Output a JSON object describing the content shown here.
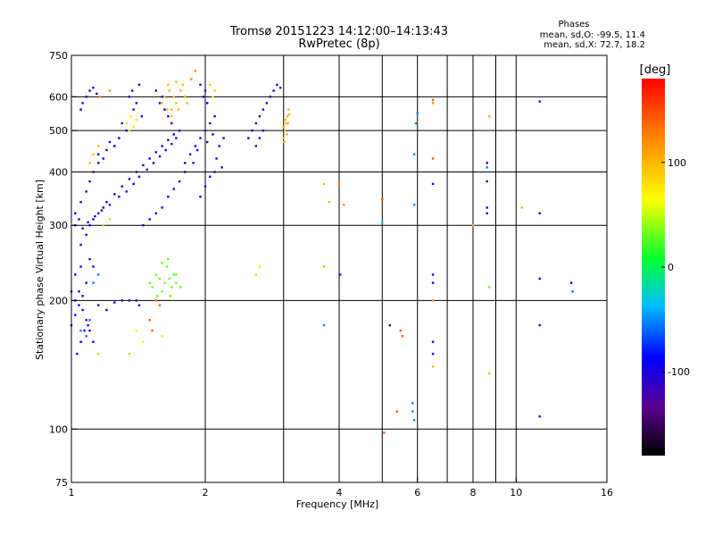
{
  "header": {
    "title": "Tromsø 20151223 14:12:00–14:13:43",
    "subtitle": "RwPretec (8p)"
  },
  "phase_box": {
    "heading": "Phases",
    "line_o": "mean, sd,O: -99.5, 11.4",
    "line_x": "mean, sd,X:  72.7, 18.2"
  },
  "colorbar": {
    "unit_label": "[deg]",
    "ticks": [
      "100",
      "0",
      "-100"
    ],
    "tick_values": [
      100,
      0,
      -100
    ],
    "range": [
      -180,
      180
    ]
  },
  "chart_data": {
    "type": "scatter",
    "xlabel": "Frequency [MHz]",
    "ylabel": "Stationary phase Virtual Height [km]",
    "xscale": "log",
    "yscale": "log",
    "xlim": [
      1,
      16
    ],
    "ylim": [
      75,
      750
    ],
    "x_ticks": [
      1,
      2,
      4,
      6,
      8,
      10,
      16
    ],
    "x_tick_labels": [
      "1",
      "2",
      "4",
      "6",
      "8",
      "10",
      "16"
    ],
    "x_gridlines": [
      1,
      2,
      3,
      4,
      5,
      6,
      7,
      8,
      9,
      10
    ],
    "y_ticks": [
      75,
      100,
      200,
      300,
      400,
      500,
      600,
      750
    ],
    "y_tick_labels": [
      "75",
      "100",
      "200",
      "300",
      "400",
      "500",
      "600",
      "750"
    ],
    "y_gridlines": [
      100,
      200,
      300,
      400,
      500,
      600
    ],
    "grid": true,
    "points": [
      [
        1.05,
        270,
        -95
      ],
      [
        1.08,
        285,
        -100
      ],
      [
        1.1,
        300,
        -98
      ],
      [
        1.12,
        310,
        -102
      ],
      [
        1.15,
        320,
        -96
      ],
      [
        1.18,
        330,
        -100
      ],
      [
        1.2,
        340,
        -95
      ],
      [
        1.25,
        355,
        -100
      ],
      [
        1.3,
        370,
        -98
      ],
      [
        1.35,
        385,
        -100
      ],
      [
        1.4,
        400,
        -104
      ],
      [
        1.45,
        415,
        -97
      ],
      [
        1.5,
        430,
        -100
      ],
      [
        1.55,
        445,
        -99
      ],
      [
        1.6,
        460,
        -101
      ],
      [
        1.65,
        475,
        -96
      ],
      [
        1.7,
        490,
        -100
      ],
      [
        1.02,
        320,
        -100
      ],
      [
        1.05,
        340,
        -97
      ],
      [
        1.08,
        360,
        -100
      ],
      [
        1.1,
        380,
        -102
      ],
      [
        1.12,
        400,
        -98
      ],
      [
        1.15,
        420,
        -100
      ],
      [
        1.02,
        300,
        -100
      ],
      [
        1.04,
        310,
        -100
      ],
      [
        1.06,
        295,
        -95
      ],
      [
        1.09,
        305,
        -100
      ],
      [
        1.13,
        315,
        -100
      ],
      [
        1.17,
        325,
        -105
      ],
      [
        1.22,
        335,
        -100
      ],
      [
        1.28,
        350,
        -100
      ],
      [
        1.33,
        360,
        -95
      ],
      [
        1.38,
        375,
        -100
      ],
      [
        1.42,
        390,
        -100
      ],
      [
        1.48,
        405,
        -105
      ],
      [
        1.53,
        420,
        -100
      ],
      [
        1.58,
        435,
        -100
      ],
      [
        1.63,
        450,
        -95
      ],
      [
        1.68,
        465,
        -100
      ],
      [
        1.72,
        480,
        -100
      ],
      [
        1.75,
        500,
        -105
      ],
      [
        1.8,
        420,
        -100
      ],
      [
        1.85,
        440,
        -100
      ],
      [
        1.9,
        460,
        -95
      ],
      [
        1.95,
        480,
        -100
      ],
      [
        2.0,
        500,
        -100
      ],
      [
        2.05,
        520,
        -105
      ],
      [
        2.1,
        540,
        -100
      ],
      [
        1.75,
        380,
        -100
      ],
      [
        1.8,
        400,
        -95
      ],
      [
        1.88,
        420,
        -100
      ],
      [
        1.92,
        450,
        -100
      ],
      [
        2.02,
        470,
        -105
      ],
      [
        2.08,
        490,
        -100
      ],
      [
        2.15,
        460,
        -100
      ],
      [
        2.2,
        480,
        -95
      ],
      [
        2.1,
        400,
        -100
      ],
      [
        2.12,
        430,
        -100
      ],
      [
        2.18,
        410,
        -105
      ],
      [
        1.95,
        350,
        -100
      ],
      [
        2.0,
        370,
        -100
      ],
      [
        2.05,
        390,
        -95
      ],
      [
        1.6,
        330,
        -100
      ],
      [
        1.65,
        350,
        -100
      ],
      [
        1.7,
        365,
        -105
      ],
      [
        1.55,
        320,
        -100
      ],
      [
        1.5,
        310,
        -100
      ],
      [
        1.45,
        300,
        -95
      ],
      [
        1.35,
        600,
        -100
      ],
      [
        1.4,
        580,
        -100
      ],
      [
        1.37,
        620,
        -105
      ],
      [
        1.42,
        640,
        -100
      ],
      [
        1.38,
        560,
        -100
      ],
      [
        1.44,
        540,
        -95
      ],
      [
        1.3,
        520,
        -100
      ],
      [
        1.33,
        500,
        -100
      ],
      [
        1.28,
        480,
        -105
      ],
      [
        1.25,
        460,
        -100
      ],
      [
        1.22,
        470,
        -100
      ],
      [
        1.2,
        450,
        -95
      ],
      [
        1.18,
        430,
        -100
      ],
      [
        1.15,
        440,
        -100
      ],
      [
        1.1,
        620,
        -105
      ],
      [
        1.08,
        600,
        -100
      ],
      [
        1.12,
        630,
        -100
      ],
      [
        1.14,
        610,
        -95
      ],
      [
        1.06,
        580,
        -100
      ],
      [
        1.05,
        560,
        -100
      ],
      [
        1.55,
        620,
        -105
      ],
      [
        1.6,
        600,
        -100
      ],
      [
        1.58,
        580,
        -100
      ],
      [
        1.62,
        560,
        -95
      ],
      [
        1.65,
        540,
        -100
      ],
      [
        1.68,
        520,
        -100
      ],
      [
        1.95,
        640,
        -105
      ],
      [
        2.0,
        620,
        -100
      ],
      [
        1.98,
        600,
        -100
      ],
      [
        2.02,
        580,
        -95
      ],
      [
        2.5,
        480,
        -100
      ],
      [
        2.55,
        500,
        -100
      ],
      [
        2.6,
        520,
        -105
      ],
      [
        2.65,
        540,
        -100
      ],
      [
        2.7,
        560,
        -100
      ],
      [
        2.75,
        580,
        -95
      ],
      [
        2.8,
        600,
        -100
      ],
      [
        2.85,
        620,
        -100
      ],
      [
        2.9,
        640,
        -105
      ],
      [
        2.6,
        460,
        -100
      ],
      [
        2.65,
        480,
        -100
      ],
      [
        2.7,
        500,
        -95
      ],
      [
        2.95,
        630,
        -100
      ],
      [
        1.02,
        200,
        -100
      ],
      [
        1.04,
        210,
        -95
      ],
      [
        1.06,
        190,
        -100
      ],
      [
        1.08,
        180,
        -105
      ],
      [
        1.1,
        170,
        -100
      ],
      [
        1.12,
        160,
        -95
      ],
      [
        1.03,
        150,
        -100
      ],
      [
        1.05,
        160,
        -105
      ],
      [
        1.07,
        170,
        -100
      ],
      [
        1.09,
        175,
        -95
      ],
      [
        1.15,
        195,
        -100
      ],
      [
        1.2,
        190,
        -105
      ],
      [
        1.25,
        198,
        -100
      ],
      [
        1.3,
        200,
        -95
      ],
      [
        1.35,
        200,
        -100
      ],
      [
        1.02,
        230,
        -100
      ],
      [
        1.05,
        240,
        -95
      ],
      [
        1.08,
        220,
        -100
      ],
      [
        1.1,
        250,
        -105
      ],
      [
        1.12,
        240,
        -100
      ],
      [
        1.0,
        210,
        -100
      ],
      [
        1.02,
        185,
        -100
      ],
      [
        1.0,
        175,
        -95
      ],
      [
        1.04,
        195,
        -100
      ],
      [
        1.06,
        205,
        -105
      ],
      [
        1.12,
        220,
        -55
      ],
      [
        1.15,
        230,
        -55
      ],
      [
        1.05,
        170,
        -50
      ],
      [
        1.08,
        165,
        -55
      ],
      [
        1.1,
        180,
        -60
      ],
      [
        1.4,
        200,
        -110
      ],
      [
        1.42,
        195,
        -105
      ],
      [
        1.5,
        220,
        30
      ],
      [
        1.52,
        215,
        30
      ],
      [
        1.55,
        230,
        30
      ],
      [
        1.58,
        225,
        30
      ],
      [
        1.6,
        210,
        30
      ],
      [
        1.62,
        220,
        30
      ],
      [
        1.64,
        240,
        30
      ],
      [
        1.66,
        225,
        30
      ],
      [
        1.68,
        215,
        30
      ],
      [
        1.7,
        230,
        30
      ],
      [
        1.72,
        220,
        30
      ],
      [
        1.56,
        205,
        30
      ],
      [
        1.6,
        245,
        30
      ],
      [
        1.65,
        250,
        30
      ],
      [
        1.67,
        205,
        30
      ],
      [
        1.72,
        230,
        30
      ],
      [
        1.76,
        215,
        30
      ],
      [
        1.6,
        580,
        100
      ],
      [
        1.62,
        600,
        100
      ],
      [
        1.64,
        560,
        100
      ],
      [
        1.66,
        620,
        100
      ],
      [
        1.68,
        540,
        100
      ],
      [
        1.7,
        600,
        100
      ],
      [
        1.72,
        580,
        100
      ],
      [
        1.74,
        560,
        100
      ],
      [
        1.76,
        620,
        100
      ],
      [
        1.78,
        640,
        100
      ],
      [
        1.8,
        600,
        100
      ],
      [
        1.65,
        640,
        100
      ],
      [
        1.68,
        560,
        100
      ],
      [
        1.72,
        650,
        100
      ],
      [
        1.82,
        580,
        100
      ],
      [
        3.0,
        480,
        100
      ],
      [
        3.02,
        500,
        100
      ],
      [
        3.04,
        520,
        100
      ],
      [
        3.06,
        540,
        100
      ],
      [
        3.08,
        560,
        100
      ],
      [
        3.0,
        510,
        100
      ],
      [
        3.03,
        530,
        100
      ],
      [
        3.05,
        490,
        100
      ],
      [
        3.07,
        520,
        100
      ],
      [
        3.09,
        545,
        100
      ],
      [
        3.01,
        470,
        100
      ],
      [
        1.12,
        440,
        100
      ],
      [
        1.15,
        460,
        100
      ],
      [
        1.1,
        420,
        100
      ],
      [
        1.35,
        500,
        80
      ],
      [
        1.38,
        510,
        80
      ],
      [
        1.33,
        520,
        80
      ],
      [
        1.4,
        530,
        80
      ],
      [
        1.36,
        540,
        80
      ],
      [
        1.16,
        600,
        120
      ],
      [
        1.22,
        620,
        120
      ],
      [
        1.9,
        690,
        120
      ],
      [
        1.86,
        660,
        120
      ],
      [
        2.1,
        620,
        90
      ],
      [
        2.05,
        640,
        90
      ],
      [
        2.08,
        600,
        60
      ],
      [
        1.55,
        200,
        140
      ],
      [
        1.58,
        195,
        140
      ],
      [
        1.5,
        180,
        140
      ],
      [
        1.52,
        170,
        140
      ],
      [
        1.4,
        170,
        60
      ],
      [
        1.45,
        160,
        60
      ],
      [
        1.6,
        165,
        60
      ],
      [
        1.35,
        150,
        40
      ],
      [
        2.6,
        230,
        50
      ],
      [
        2.65,
        240,
        50
      ],
      [
        1.15,
        150,
        40
      ],
      [
        1.18,
        300,
        40
      ],
      [
        1.22,
        310,
        40
      ],
      [
        3.7,
        375,
        100
      ],
      [
        3.8,
        340,
        100
      ],
      [
        4.0,
        375,
        120
      ],
      [
        4.02,
        230,
        -100
      ],
      [
        4.1,
        335,
        120
      ],
      [
        3.7,
        240,
        100
      ],
      [
        3.7,
        175,
        -50
      ],
      [
        5.0,
        345,
        140
      ],
      [
        5.0,
        305,
        -20
      ],
      [
        5.2,
        175,
        -110
      ],
      [
        5.5,
        170,
        140
      ],
      [
        5.55,
        165,
        140
      ],
      [
        5.4,
        110,
        140
      ],
      [
        5.05,
        98,
        140
      ],
      [
        5.85,
        110,
        -50
      ],
      [
        5.85,
        115,
        -50
      ],
      [
        5.9,
        105,
        -50
      ],
      [
        5.9,
        440,
        -50
      ],
      [
        5.95,
        520,
        -50
      ],
      [
        6.0,
        550,
        -50
      ],
      [
        5.9,
        335,
        -50
      ],
      [
        6.5,
        580,
        120
      ],
      [
        6.5,
        590,
        140
      ],
      [
        6.5,
        430,
        140
      ],
      [
        6.5,
        375,
        -100
      ],
      [
        6.5,
        230,
        -100
      ],
      [
        6.5,
        220,
        -100
      ],
      [
        6.5,
        200,
        120
      ],
      [
        6.5,
        160,
        -100
      ],
      [
        6.5,
        150,
        -100
      ],
      [
        6.5,
        140,
        100
      ],
      [
        8.0,
        300,
        100
      ],
      [
        8.6,
        420,
        -100
      ],
      [
        8.6,
        410,
        -50
      ],
      [
        8.6,
        380,
        -100
      ],
      [
        8.6,
        330,
        -100
      ],
      [
        8.6,
        320,
        -100
      ],
      [
        8.7,
        540,
        100
      ],
      [
        8.7,
        215,
        30
      ],
      [
        8.7,
        135,
        100
      ],
      [
        10.3,
        330,
        100
      ],
      [
        11.3,
        585,
        -100
      ],
      [
        11.3,
        320,
        -100
      ],
      [
        11.3,
        225,
        -100
      ],
      [
        11.3,
        175,
        -100
      ],
      [
        11.3,
        107,
        -100
      ],
      [
        13.3,
        220,
        -100
      ],
      [
        13.4,
        210,
        -60
      ]
    ]
  }
}
